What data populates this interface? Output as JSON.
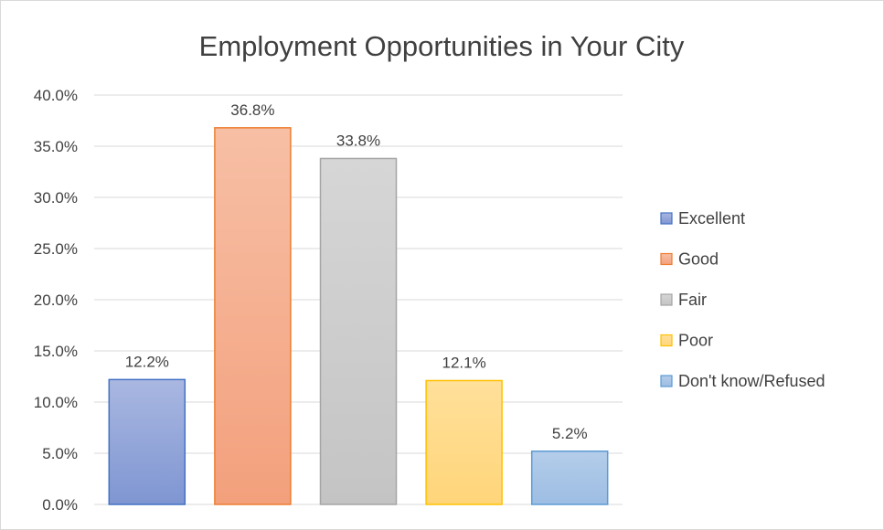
{
  "chart_data": {
    "type": "bar",
    "title": "Employment Opportunities in Your City",
    "xlabel": "",
    "ylabel": "",
    "ylim": [
      0,
      40
    ],
    "y_ticks": [
      "0.0%",
      "5.0%",
      "10.0%",
      "15.0%",
      "20.0%",
      "25.0%",
      "30.0%",
      "35.0%",
      "40.0%"
    ],
    "grid": true,
    "legend_position": "right",
    "categories": [
      "Excellent",
      "Good",
      "Fair",
      "Poor",
      "Don't know/Refused"
    ],
    "values": [
      12.2,
      36.8,
      33.8,
      12.1,
      5.2
    ],
    "data_labels": [
      "12.2%",
      "36.8%",
      "33.8%",
      "12.1%",
      "5.2%"
    ],
    "colors": [
      {
        "top": "#a9b7e1",
        "bottom": "#7f96d2",
        "border": "#4472c4"
      },
      {
        "top": "#f7bfa5",
        "bottom": "#f3a07c",
        "border": "#ed7d31"
      },
      {
        "top": "#d6d6d6",
        "bottom": "#c4c4c4",
        "border": "#a5a5a5"
      },
      {
        "top": "#ffe09a",
        "bottom": "#ffd57a",
        "border": "#ffc000"
      },
      {
        "top": "#b4cdea",
        "bottom": "#9dbde3",
        "border": "#5b9bd5"
      }
    ]
  }
}
